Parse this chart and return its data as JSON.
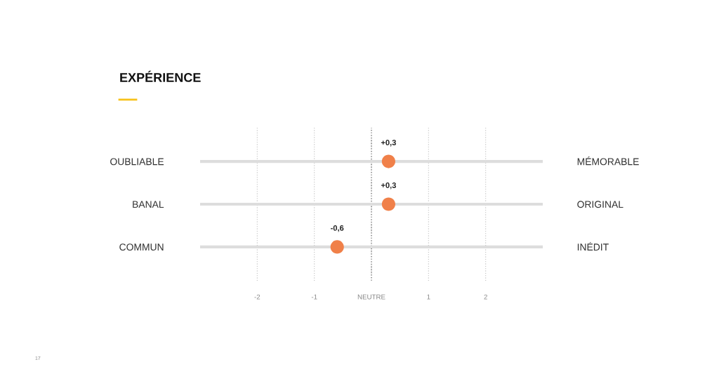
{
  "chart_data": {
    "type": "scatter",
    "orientation": "horizontal",
    "title": "EXPÉRIENCE",
    "categories": [
      "OUBLIABLE",
      "BANAL",
      "COMMUN"
    ],
    "y2_categories": [
      "MÉMORABLE",
      "ORIGINAL",
      "INÉDIT"
    ],
    "series": [
      {
        "color": "#f08049",
        "values": [
          0.3,
          0.3,
          -0.6
        ],
        "value_labels": [
          "+0,3",
          "+0,3",
          "-0,6"
        ]
      }
    ],
    "xlim": [
      -3,
      3
    ],
    "xticks": [
      {
        "value": -2,
        "label": "-2"
      },
      {
        "value": -1,
        "label": "-1"
      },
      {
        "value": 0,
        "label": "NEUTRE"
      },
      {
        "value": 1,
        "label": "1"
      },
      {
        "value": 2,
        "label": "2"
      }
    ],
    "grid": "x",
    "marker": "circle",
    "ref_lines": [
      {
        "axis": "x",
        "value": 0,
        "color": "#555555",
        "line_style": "dotted"
      }
    ],
    "annotations": [
      "17"
    ]
  }
}
